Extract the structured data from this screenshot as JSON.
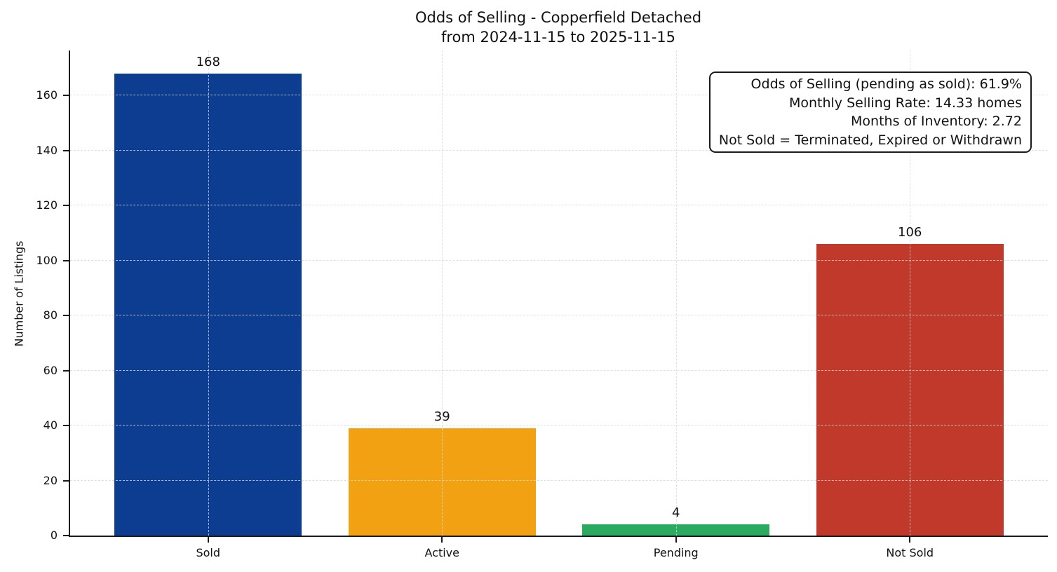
{
  "title": {
    "line1": "Odds of Selling - Copperfield Detached",
    "line2": "from 2024-11-15 to 2025-11-15"
  },
  "annotation": {
    "lines": [
      "Odds of Selling (pending as sold): 61.9%",
      "Monthly Selling Rate: 14.33 homes",
      "Months of Inventory: 2.72",
      "Not Sold = Terminated, Expired or Withdrawn"
    ]
  },
  "chart_data": {
    "type": "bar",
    "title": "Odds of Selling - Copperfield Detached\nfrom 2024-11-15 to 2025-11-15",
    "categories": [
      "Sold",
      "Active",
      "Pending",
      "Not Sold"
    ],
    "values": [
      168,
      39,
      4,
      106
    ],
    "bar_colors": [
      "#0d3d91",
      "#f2a113",
      "#2bab60",
      "#c0392b"
    ],
    "xlabel": "",
    "ylabel": "Number of Listings",
    "ylim": [
      0,
      176.4
    ],
    "xlim_units": [
      -0.59,
      3.59
    ],
    "bar_width_units": 0.8,
    "yticks": [
      0,
      20,
      40,
      60,
      80,
      100,
      120,
      140,
      160
    ],
    "grid": "dashed, drawn above bars",
    "legend": "none",
    "annotation_box_position": "top-right"
  },
  "colors": {
    "axis": "#1a1a1a",
    "grid": "#d7d7d7",
    "text": "#111111",
    "background": "#ffffff"
  }
}
